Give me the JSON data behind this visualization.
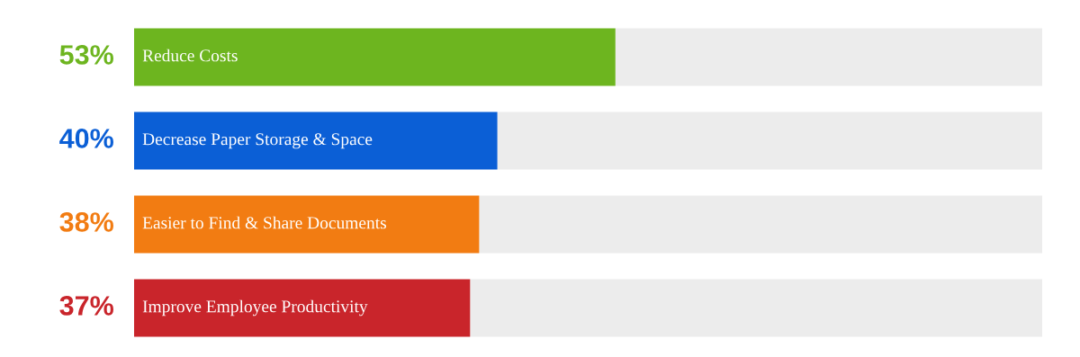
{
  "chart_data": {
    "type": "bar",
    "orientation": "horizontal",
    "stacked": true,
    "categories": [
      "Reduce Costs",
      "Decrease Paper Storage & Space",
      "Easier to Find & Share Documents",
      "Improve Employee Productivity"
    ],
    "series": [
      {
        "colors": [
          "#6db51f",
          "#0b5fd6",
          "#f27c12",
          "#c9252b"
        ],
        "values": [
          53,
          40,
          38,
          37
        ],
        "value_labels": [
          "53%",
          "40%",
          "38%",
          "37%"
        ]
      },
      {
        "color": "#ececec",
        "values": [
          47,
          60,
          62,
          63
        ]
      }
    ],
    "xlim": [
      0,
      100
    ]
  }
}
